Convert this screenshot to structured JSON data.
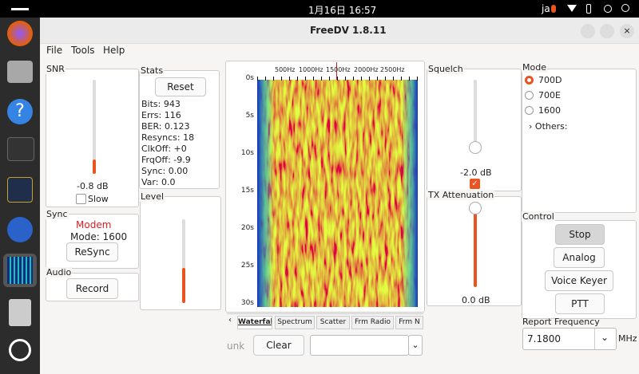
{
  "top_bar": {
    "datetime": "1月16日 16:57",
    "input_method": "ja"
  },
  "window": {
    "title": "FreeDV 1.8.11"
  },
  "menu": [
    "File",
    "Tools",
    "Help"
  ],
  "snr": {
    "label": "SNR",
    "value": "-0.8 dB",
    "slow": "Slow"
  },
  "stats": {
    "label": "Stats",
    "reset": "Reset",
    "lines": [
      "Bits: 943",
      "Errs: 116",
      "BER: 0.123",
      "Resyncs: 18",
      "ClkOff: +0",
      "FrqOff: -9.9",
      "Sync: 0.00",
      "Var: 0.0"
    ]
  },
  "level": {
    "label": "Level"
  },
  "sync": {
    "label": "Sync",
    "status": "Modem",
    "mode": "Mode: 1600",
    "resync": "ReSync"
  },
  "audio": {
    "label": "Audio",
    "record": "Record"
  },
  "waterfall": {
    "freq_labels": [
      "500Hz",
      "1000Hz",
      "1500Hz",
      "2000Hz",
      "2500Hz"
    ],
    "time_labels": [
      "0s",
      "5s",
      "10s",
      "15s",
      "20s",
      "25s",
      "30s"
    ],
    "tabs": [
      "Waterfall",
      "Spectrum",
      "Scatter",
      "Frm Radio",
      "Frm N"
    ]
  },
  "bottom": {
    "callsign": "unk",
    "clear": "Clear"
  },
  "squelch": {
    "label": "Squelch",
    "value": "-2.0 dB"
  },
  "tx_attenuation": {
    "label": "TX Attenuation",
    "value": "0.0 dB"
  },
  "mode": {
    "label": "Mode",
    "options": [
      "700D",
      "700E",
      "1600"
    ],
    "others": "Others:"
  },
  "control": {
    "label": "Control",
    "buttons": [
      "Stop",
      "Analog",
      "Voice Keyer",
      "PTT"
    ]
  },
  "report_frequency": {
    "label": "Report Frequency",
    "value": "7.1800",
    "unit": "MHz"
  }
}
